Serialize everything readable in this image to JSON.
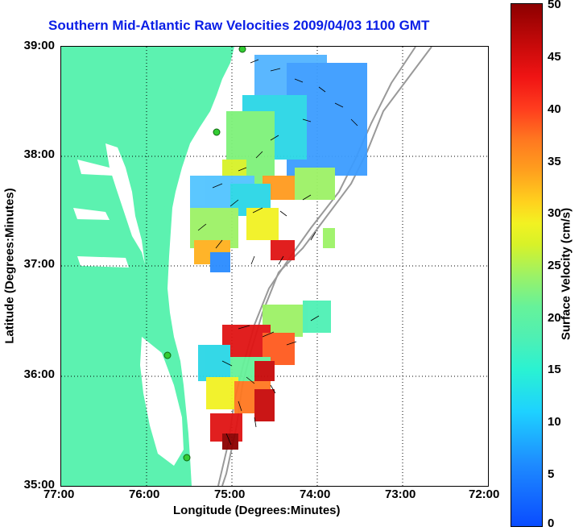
{
  "title": "Southern Mid-Atlantic Raw Velocities 2009/04/03 1100 GMT",
  "x_axis": {
    "label": "Longitude (Degrees:Minutes)",
    "ticks": [
      "77:00",
      "76:00",
      "75:00",
      "74:00",
      "73:00",
      "72:00"
    ]
  },
  "y_axis": {
    "label": "Latitude (Degrees:Minutes)",
    "ticks": [
      "39:00",
      "38:00",
      "37:00",
      "36:00",
      "35:00"
    ]
  },
  "colorbar": {
    "label": "Surface Velocity (cm/s)",
    "ticks": [
      "50",
      "45",
      "40",
      "35",
      "30",
      "25",
      "20",
      "15",
      "10",
      "5",
      "0"
    ],
    "range": [
      0,
      50
    ]
  },
  "map": {
    "lon_range": [
      -77,
      -72
    ],
    "lat_range": [
      35,
      39
    ],
    "grid": "dotted",
    "land_color": "#5cf2b0",
    "bathymetry_color": "#999999",
    "station_color": "#33cc33"
  }
}
